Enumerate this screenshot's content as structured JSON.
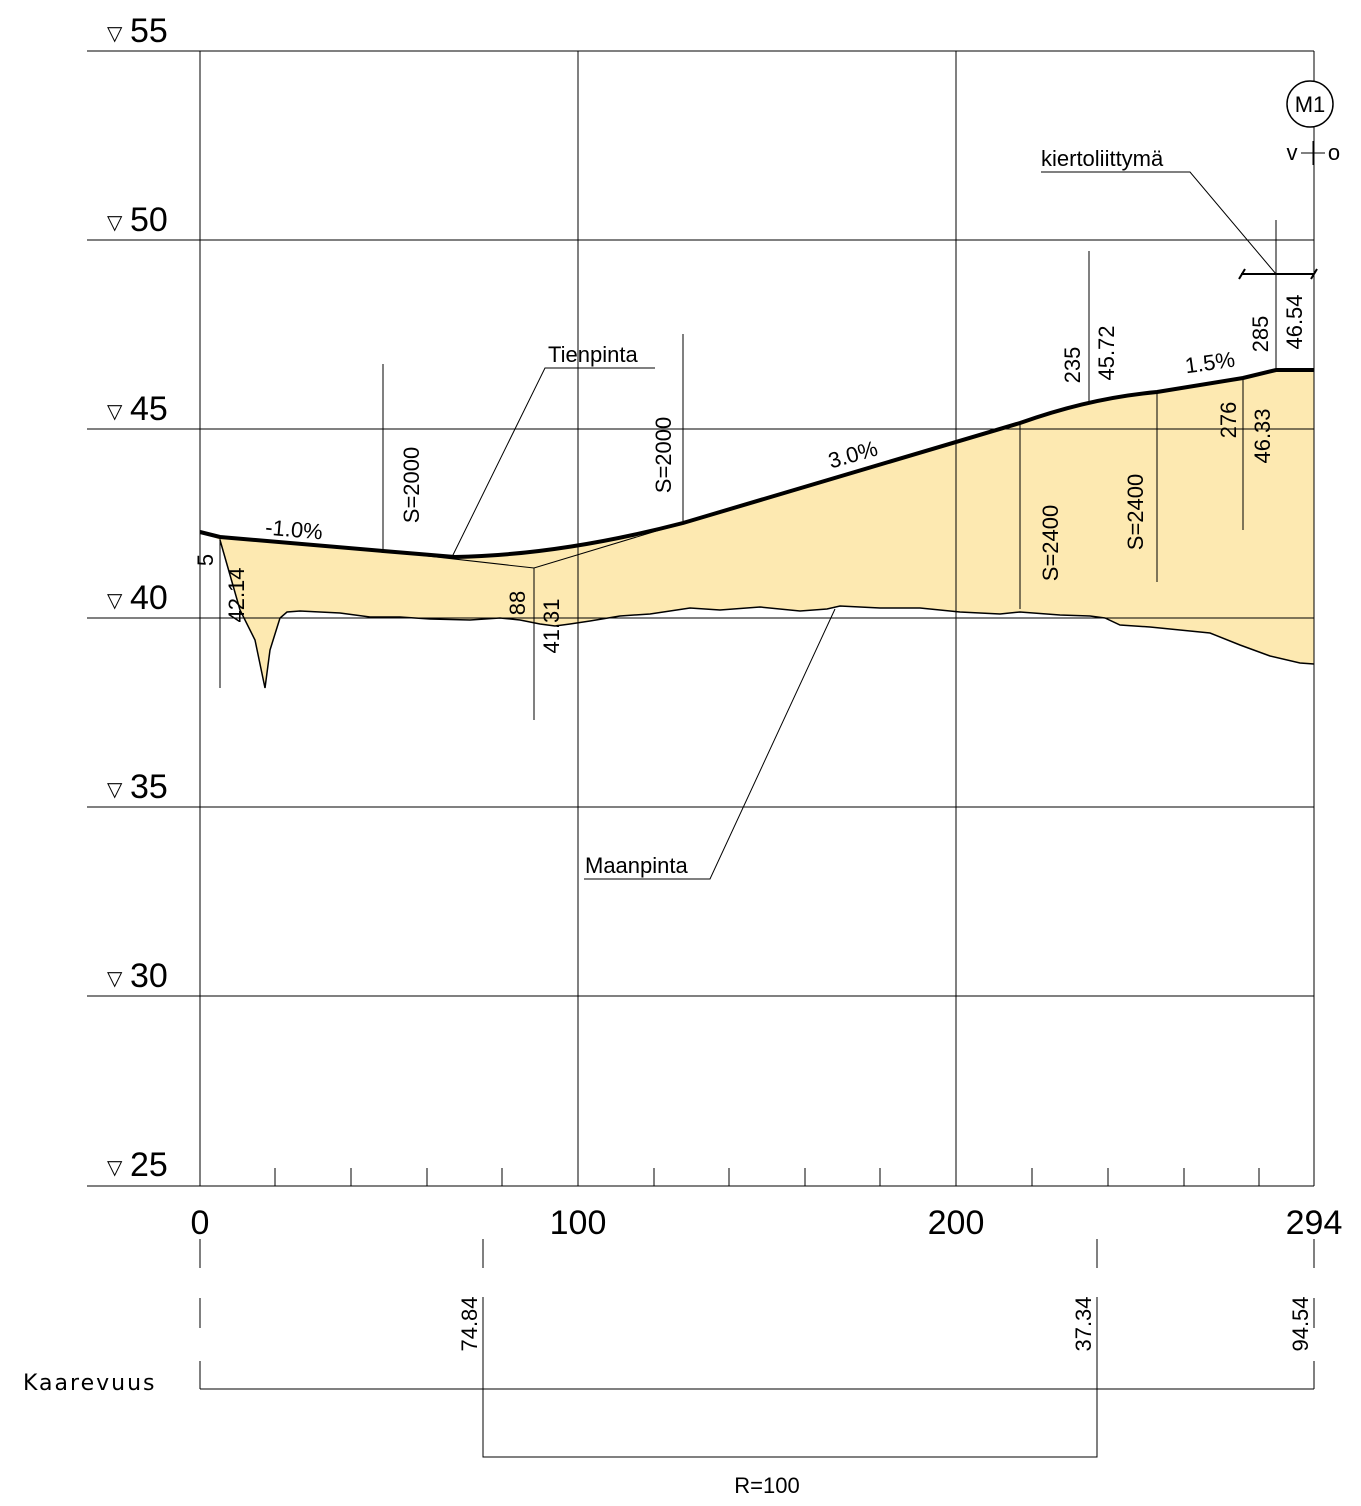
{
  "elevation_labels": [
    "55",
    "50",
    "45",
    "40",
    "35",
    "30",
    "25"
  ],
  "station_labels": [
    "0",
    "100",
    "200",
    "294"
  ],
  "road_surface_label": "Tienpinta",
  "ground_surface_label": "Maanpinta",
  "roundabout_label": "kiertoliittymä",
  "marker": {
    "symbol": "M1",
    "left": "v",
    "right": "o"
  },
  "grades": {
    "g1": "-1.0%",
    "g2": "3.0%",
    "g3": "1.5%"
  },
  "vertical_curves": {
    "vc1_a": "S=2000",
    "vc1_b": "S=2000",
    "vc2_a": "S=2400",
    "vc2_b": "S=2400"
  },
  "break_points": [
    {
      "station": "5",
      "elevation": "42.14"
    },
    {
      "station": "88",
      "elevation": "41.31"
    },
    {
      "station": "235",
      "elevation": "45.72"
    },
    {
      "station": "276",
      "elevation": "46.33"
    },
    {
      "station": "285",
      "elevation": "46.54"
    }
  ],
  "curvature": {
    "row_label": "Kaarevuus",
    "values": [
      "74.84",
      "37.34",
      "94.54"
    ],
    "radius": "R=100"
  },
  "colors": {
    "fill": "#fde9b1",
    "line": "#000000"
  }
}
